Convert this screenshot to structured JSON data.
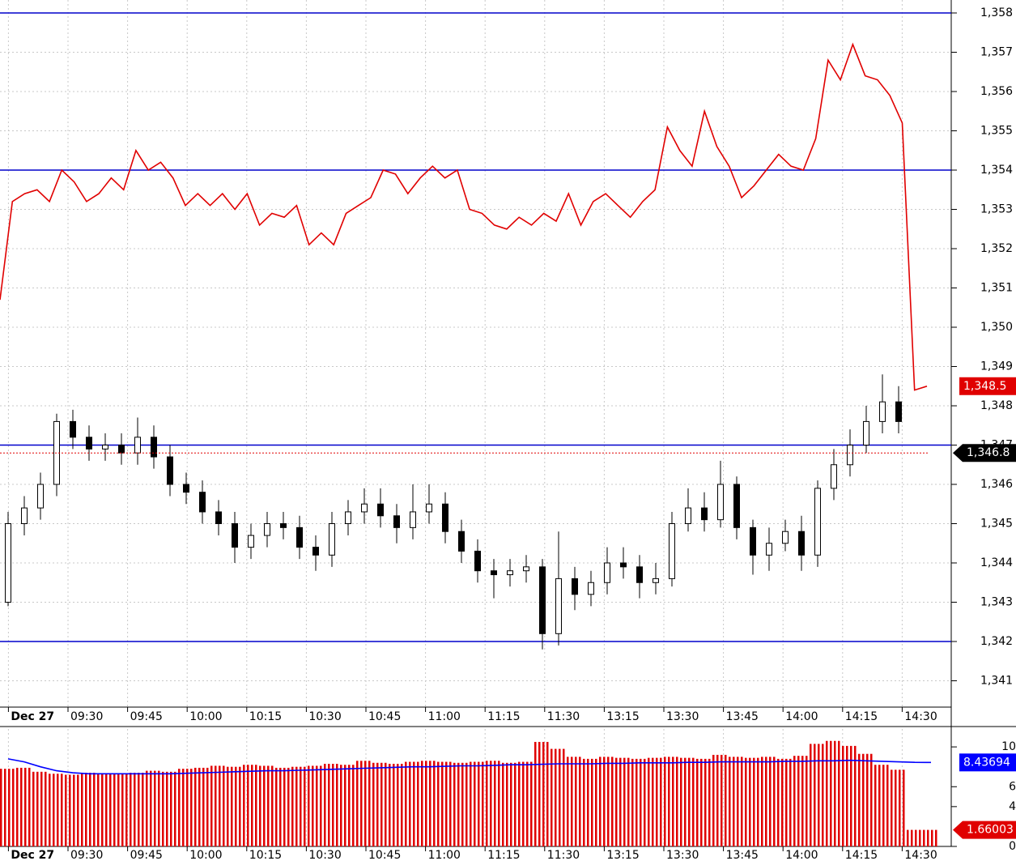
{
  "chart_data": {
    "type": "candlestick",
    "categories": [
      "Dec 27",
      "09:30",
      "09:45",
      "10:00",
      "10:15",
      "10:30",
      "10:45",
      "11:00",
      "11:15",
      "11:30",
      "13:15",
      "13:30",
      "13:45",
      "14:00",
      "14:15",
      "14:30"
    ],
    "ylim": [
      1340.33,
      1358.33
    ],
    "yticks": [
      {
        "value": 1341,
        "label": "1,341"
      },
      {
        "value": 1342,
        "label": "1,342"
      },
      {
        "value": 1343,
        "label": "1,343"
      },
      {
        "value": 1344,
        "label": "1,344"
      },
      {
        "value": 1345,
        "label": "1,345"
      },
      {
        "value": 1346,
        "label": "1,346"
      },
      {
        "value": 1347,
        "label": "1,347"
      },
      {
        "value": 1348,
        "label": "1,348"
      },
      {
        "value": 1349,
        "label": "1,349"
      },
      {
        "value": 1350,
        "label": "1,350"
      },
      {
        "value": 1351,
        "label": "1,351"
      },
      {
        "value": 1352,
        "label": "1,352"
      },
      {
        "value": 1353,
        "label": "1,353"
      },
      {
        "value": 1354,
        "label": "1,354"
      },
      {
        "value": 1355,
        "label": "1,355"
      },
      {
        "value": 1356,
        "label": "1,356"
      },
      {
        "value": 1357,
        "label": "1,357"
      },
      {
        "value": 1358,
        "label": "1,358"
      }
    ],
    "grid": true,
    "candles": {
      "up_color": "#ffffff",
      "down_color": "#000000",
      "open": [
        1343.0,
        1345.0,
        1345.4,
        1346.0,
        1347.6,
        1347.2,
        1346.9,
        1347.0,
        1346.8,
        1347.2,
        1346.7,
        1346.0,
        1345.8,
        1345.3,
        1345.0,
        1344.4,
        1344.7,
        1345.0,
        1344.9,
        1344.4,
        1344.2,
        1345.0,
        1345.3,
        1345.5,
        1345.2,
        1344.9,
        1345.3,
        1345.5,
        1344.8,
        1344.3,
        1343.8,
        1343.7,
        1343.8,
        1343.9,
        1342.2,
        1343.6,
        1343.2,
        1343.5,
        1344.0,
        1343.9,
        1343.5,
        1343.6,
        1345.0,
        1345.4,
        1345.1,
        1346.0,
        1344.9,
        1344.2,
        1344.5,
        1344.8,
        1344.2,
        1345.9,
        1346.5,
        1347.0,
        1347.6,
        1348.1
      ],
      "high": [
        1345.3,
        1345.7,
        1346.3,
        1347.8,
        1347.9,
        1347.5,
        1347.3,
        1347.3,
        1347.7,
        1347.5,
        1347.0,
        1346.3,
        1346.1,
        1345.6,
        1345.3,
        1345.0,
        1345.3,
        1345.3,
        1345.2,
        1344.7,
        1345.3,
        1345.6,
        1345.9,
        1345.9,
        1345.5,
        1346.0,
        1346.0,
        1345.8,
        1345.1,
        1344.6,
        1344.1,
        1344.1,
        1344.2,
        1344.1,
        1344.8,
        1343.9,
        1343.8,
        1344.4,
        1344.4,
        1344.2,
        1344.0,
        1345.3,
        1345.9,
        1345.8,
        1346.6,
        1346.2,
        1345.1,
        1344.9,
        1345.1,
        1345.2,
        1346.1,
        1346.9,
        1347.4,
        1348.0,
        1348.8,
        1348.5
      ],
      "low": [
        1342.9,
        1344.7,
        1345.1,
        1345.7,
        1346.9,
        1346.6,
        1346.6,
        1346.5,
        1346.5,
        1346.4,
        1345.7,
        1345.5,
        1345.0,
        1344.7,
        1344.0,
        1344.1,
        1344.4,
        1344.6,
        1344.1,
        1343.8,
        1343.9,
        1344.7,
        1345.0,
        1344.9,
        1344.5,
        1344.6,
        1345.0,
        1344.5,
        1344.0,
        1343.5,
        1343.1,
        1343.4,
        1343.5,
        1341.8,
        1341.9,
        1342.8,
        1342.9,
        1343.2,
        1343.6,
        1343.1,
        1343.2,
        1343.4,
        1344.8,
        1344.8,
        1344.9,
        1344.6,
        1343.7,
        1343.8,
        1344.3,
        1343.8,
        1343.9,
        1345.6,
        1346.2,
        1346.8,
        1347.3,
        1347.3
      ],
      "close": [
        1345.0,
        1345.4,
        1346.0,
        1347.6,
        1347.2,
        1346.9,
        1347.0,
        1346.8,
        1347.2,
        1346.7,
        1346.0,
        1345.8,
        1345.3,
        1345.0,
        1344.4,
        1344.7,
        1345.0,
        1344.9,
        1344.4,
        1344.2,
        1345.0,
        1345.3,
        1345.5,
        1345.2,
        1344.9,
        1345.3,
        1345.5,
        1344.8,
        1344.3,
        1343.8,
        1343.7,
        1343.8,
        1343.9,
        1342.2,
        1343.6,
        1343.2,
        1343.5,
        1344.0,
        1343.9,
        1343.5,
        1343.6,
        1345.0,
        1345.4,
        1345.1,
        1346.0,
        1344.9,
        1344.2,
        1344.5,
        1344.8,
        1344.2,
        1345.9,
        1346.5,
        1347.0,
        1347.6,
        1348.1,
        1347.6
      ]
    },
    "overlay": {
      "color": "#e00000",
      "values": [
        1350.7,
        1353.2,
        1353.4,
        1353.5,
        1353.2,
        1354.0,
        1353.7,
        1353.2,
        1353.4,
        1353.8,
        1353.5,
        1354.5,
        1354.0,
        1354.2,
        1353.8,
        1353.1,
        1353.4,
        1353.1,
        1353.4,
        1353.0,
        1353.4,
        1352.6,
        1352.9,
        1352.8,
        1353.1,
        1352.1,
        1352.4,
        1352.1,
        1352.9,
        1353.1,
        1353.3,
        1354.0,
        1353.9,
        1353.4,
        1353.8,
        1354.1,
        1353.8,
        1354.0,
        1353.0,
        1352.9,
        1352.6,
        1352.5,
        1352.8,
        1352.6,
        1352.9,
        1352.7,
        1353.4,
        1352.6,
        1353.2,
        1353.4,
        1353.1,
        1352.8,
        1353.2,
        1353.5,
        1355.1,
        1354.5,
        1354.1,
        1355.5,
        1354.6,
        1354.1,
        1353.3,
        1353.6,
        1354.0,
        1354.4,
        1354.1,
        1354.0,
        1354.8,
        1356.8,
        1356.3,
        1357.2,
        1356.4,
        1356.3,
        1355.9,
        1355.2,
        1348.4,
        1348.5
      ]
    },
    "hlines": {
      "color": "#0000cc",
      "values": [
        1358,
        1354,
        1347,
        1342
      ]
    },
    "markers": [
      {
        "value": 1348.5,
        "label": "1,348.5",
        "color": "#e00000"
      },
      {
        "value": 1346.8,
        "label": "1,346.8",
        "color": "#000000"
      }
    ],
    "volume": {
      "ylim": [
        0,
        11.8
      ],
      "yticks": [
        0,
        4,
        6,
        10
      ],
      "color": "#e00000",
      "values": [
        7.8,
        7.9,
        7.5,
        7.3,
        7.2,
        7.4,
        7.3,
        7.3,
        7.4,
        7.6,
        7.5,
        7.8,
        7.9,
        8.1,
        8.0,
        8.2,
        8.1,
        7.9,
        8.0,
        8.1,
        8.3,
        8.2,
        8.6,
        8.4,
        8.3,
        8.5,
        8.6,
        8.5,
        8.4,
        8.5,
        8.6,
        8.4,
        8.5,
        10.5,
        9.8,
        9.0,
        8.8,
        9.0,
        8.9,
        8.8,
        8.9,
        9.0,
        8.9,
        8.8,
        9.2,
        9.0,
        8.9,
        9.0,
        8.8,
        9.1,
        10.3,
        10.6,
        10.1,
        9.3,
        8.2,
        7.7,
        1.66003,
        1.66003
      ],
      "average": {
        "color": "#0000ff",
        "values": [
          8.8,
          8.5,
          8.0,
          7.6,
          7.4,
          7.3,
          7.3,
          7.3,
          7.3,
          7.3,
          7.3,
          7.35,
          7.4,
          7.45,
          7.5,
          7.55,
          7.6,
          7.6,
          7.65,
          7.7,
          7.75,
          7.8,
          7.85,
          7.9,
          7.95,
          8.0,
          8.0,
          8.05,
          8.1,
          8.1,
          8.15,
          8.2,
          8.2,
          8.25,
          8.3,
          8.3,
          8.3,
          8.35,
          8.35,
          8.4,
          8.4,
          8.4,
          8.45,
          8.45,
          8.5,
          8.5,
          8.5,
          8.5,
          8.55,
          8.55,
          8.6,
          8.6,
          8.65,
          8.6,
          8.55,
          8.5,
          8.45,
          8.43694
        ]
      }
    }
  }
}
